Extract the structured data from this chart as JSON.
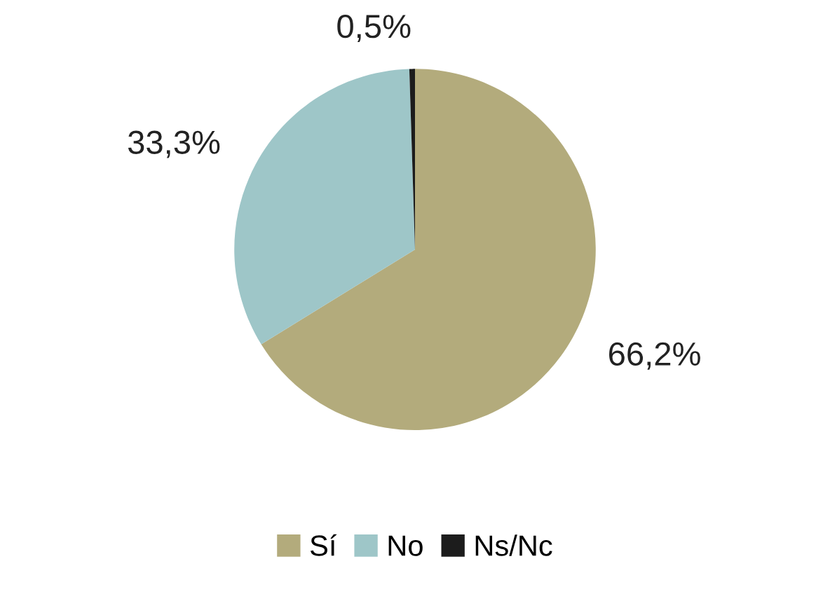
{
  "chart_data": {
    "type": "pie",
    "categories": [
      "Sí",
      "No",
      "Ns/Nc"
    ],
    "values": [
      66.2,
      33.3,
      0.5
    ],
    "colors": [
      "#b3ab7c",
      "#9ec6c8",
      "#1c1c1c"
    ],
    "value_labels": [
      "66,2%",
      "33,3%",
      "0,5%"
    ],
    "legend": "bottom"
  }
}
